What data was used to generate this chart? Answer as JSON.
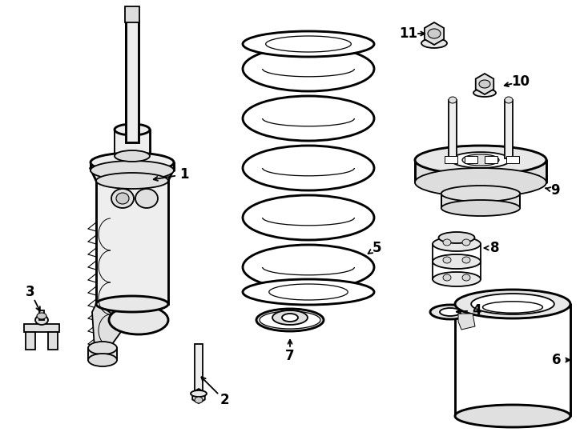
{
  "bg_color": "#ffffff",
  "line_color": "#000000",
  "lw": 1.3,
  "fig_width": 7.34,
  "fig_height": 5.4
}
